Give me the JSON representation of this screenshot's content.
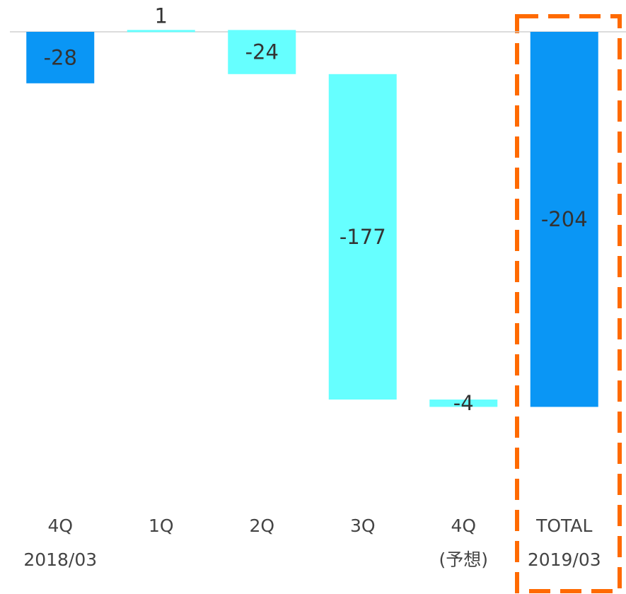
{
  "chart_data": {
    "type": "waterfall",
    "categories": [
      "4Q",
      "1Q",
      "2Q",
      "3Q",
      "4Q",
      "TOTAL"
    ],
    "sublabels": [
      "2018/03",
      null,
      null,
      null,
      "(予想)",
      "2019/03"
    ],
    "values": [
      -28,
      1,
      -24,
      -177,
      -4,
      -204
    ],
    "bar_kind": [
      "absolute",
      "delta",
      "delta",
      "delta",
      "delta",
      "absolute"
    ],
    "colors": {
      "absolute": "#0a96f5",
      "delta": "#66ffff"
    },
    "ylim": [
      -260,
      15
    ],
    "grid": false
  }
}
